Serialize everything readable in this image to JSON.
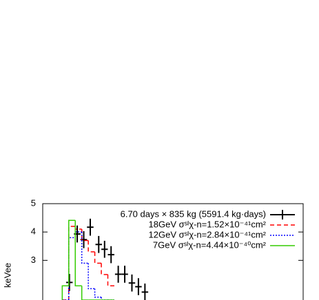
{
  "chart_data": {
    "type": "histogram",
    "y_label": "keVee",
    "xlim": [
      0,
      40
    ],
    "ylim": [
      1.6,
      5
    ],
    "yticks": [
      5,
      4,
      3
    ],
    "legend": "upper right",
    "series": [
      {
        "name": "6.70 days × 835 kg (5591.4 kg·days)",
        "color": "#000000",
        "type": "errorbar",
        "x": [
          4.1,
          5.3,
          6.3,
          7.3,
          8.6,
          9.5,
          10.5,
          11.6,
          12.6,
          13.7,
          14.7,
          15.7
        ],
        "values": [
          2.22,
          3.93,
          3.73,
          4.17,
          3.56,
          3.39,
          3.2,
          2.51,
          2.51,
          2.2,
          2.07,
          1.88
        ],
        "xerr": 0.5,
        "yerr": 0.3
      },
      {
        "name": "18GeV  σˢᴵχ-n=1.52×10⁻⁴¹cm²",
        "color": "#ff0000",
        "type": "step",
        "dash": "dashed",
        "bins": [
          3,
          4,
          5,
          6,
          7,
          8,
          9,
          10,
          11
        ],
        "values": [
          1.6,
          4.2,
          4.1,
          3.7,
          3.3,
          2.9,
          2.5,
          2.1
        ]
      },
      {
        "name": "12GeV  σˢᴵχ-n=2.84×10⁻⁴¹cm²",
        "color": "#0000ff",
        "type": "step",
        "dash": "dotted",
        "bins": [
          3,
          4,
          5,
          6,
          7,
          8,
          9,
          10,
          11
        ],
        "values": [
          1.6,
          3.8,
          4.0,
          2.9,
          2.0,
          1.7,
          1.6,
          1.6
        ]
      },
      {
        "name": "7GeV  σˢᴵχ-n=4.44×10⁻⁴⁰cm²",
        "color": "#33cc00",
        "type": "step",
        "dash": "solid",
        "bins": [
          3,
          4,
          5,
          6,
          7,
          8,
          9,
          10,
          11
        ],
        "values": [
          2.1,
          4.41,
          2.1,
          1.6,
          1.6,
          1.6,
          1.6,
          1.6
        ]
      }
    ]
  }
}
